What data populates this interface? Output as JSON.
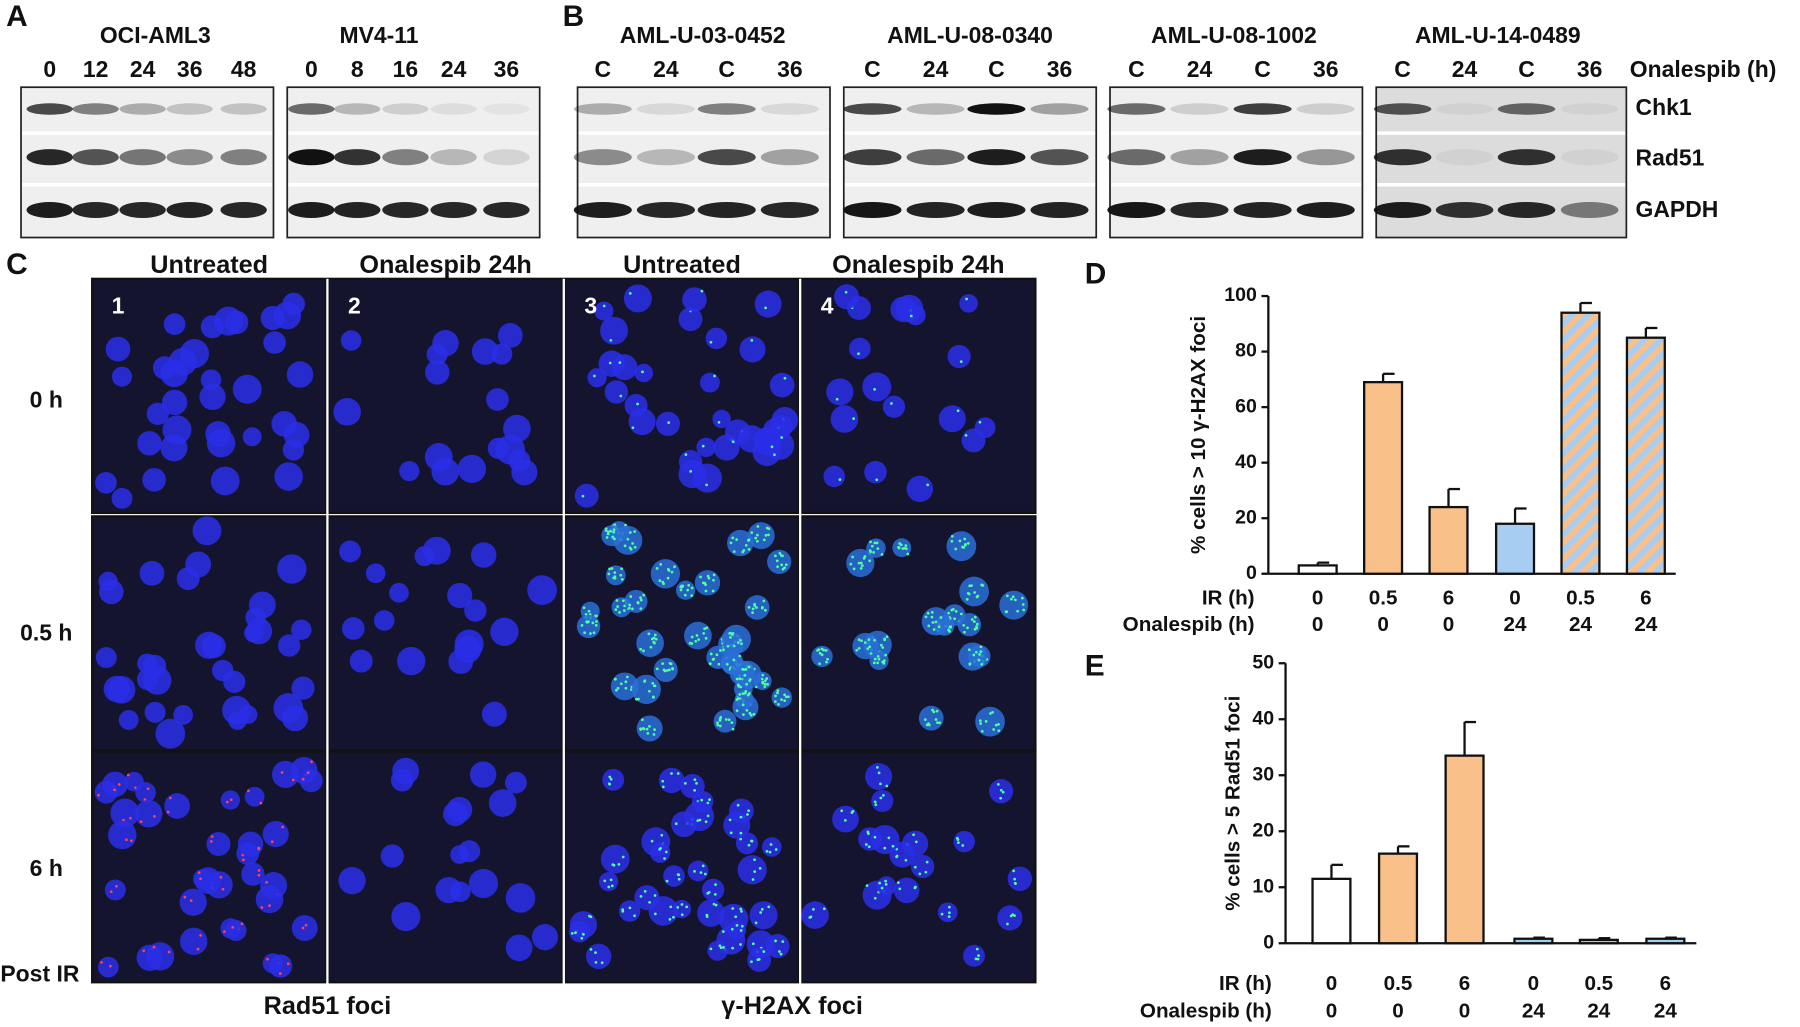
{
  "panel_labels": [
    "A",
    "B",
    "C",
    "D",
    "E"
  ],
  "blots": {
    "groups": [
      {
        "title": "OCI-AML3",
        "lanes": [
          "0",
          "12",
          "24",
          "36",
          "48"
        ]
      },
      {
        "title": "MV4-11",
        "lanes": [
          "0",
          "8",
          "16",
          "24",
          "36"
        ]
      },
      {
        "title": "AML-U-03-0452",
        "lanes": [
          "C",
          "24",
          "C",
          "36"
        ]
      },
      {
        "title": "AML-U-08-0340",
        "lanes": [
          "C",
          "24",
          "C",
          "36"
        ]
      },
      {
        "title": "AML-U-08-1002",
        "lanes": [
          "C",
          "24",
          "C",
          "36"
        ]
      },
      {
        "title": "AML-U-14-0489",
        "lanes": [
          "C",
          "24",
          "C",
          "36"
        ]
      }
    ],
    "treatment_label": "Onalespib (h)",
    "proteins": [
      "Chk1",
      "Rad51",
      "GAPDH"
    ]
  },
  "microscopy": {
    "columns": [
      "Untreated",
      "Onalespib 24h",
      "Untreated",
      "Onalespib 24h"
    ],
    "panel_numbers": [
      "1",
      "2",
      "3",
      "4"
    ],
    "rows": [
      "0 h",
      "0.5 h",
      "6 h"
    ],
    "post_label": "Post IR",
    "stains": [
      "Rad51 foci",
      "γ-H2AX foci"
    ]
  },
  "chart_data": [
    {
      "type": "bar",
      "ylabel": "% cells > 10 γ-H2AX foci",
      "category_rows": [
        {
          "name": "IR (h)",
          "labels": [
            "0",
            "0.5",
            "6",
            "0",
            "0.5",
            "6"
          ]
        },
        {
          "name": "Onalespib (h)",
          "labels": [
            "0",
            "0",
            "0",
            "24",
            "24",
            "24"
          ]
        }
      ],
      "values": [
        3,
        69,
        24,
        18,
        94,
        85
      ],
      "errors": [
        1,
        3,
        6.5,
        5.5,
        3.5,
        3.5
      ],
      "fills": [
        "#ffffff",
        "#f9c08a",
        "#f9c08a",
        "#a8cdf2",
        "#f9c08a",
        "#f9c08a"
      ],
      "hatch": [
        false,
        false,
        false,
        false,
        true,
        true
      ],
      "hatch_color": "#a8cdf2",
      "ylim": [
        0,
        100
      ],
      "yticks": [
        0,
        20,
        40,
        60,
        80,
        100
      ]
    },
    {
      "type": "bar",
      "ylabel": "% cells > 5 Rad51 foci",
      "category_rows": [
        {
          "name": "IR (h)",
          "labels": [
            "0",
            "0.5",
            "6",
            "0",
            "0.5",
            "6"
          ]
        },
        {
          "name": "Onalespib (h)",
          "labels": [
            "0",
            "0",
            "0",
            "24",
            "24",
            "24"
          ]
        }
      ],
      "values": [
        11.5,
        16,
        33.5,
        0.8,
        0.6,
        0.8
      ],
      "errors": [
        2.5,
        1.3,
        6,
        0.2,
        0.3,
        0.2
      ],
      "fills": [
        "#ffffff",
        "#f9c08a",
        "#f9c08a",
        "#a8cdf2",
        "#a8cdf2",
        "#a8cdf2"
      ],
      "hatch": [
        false,
        false,
        false,
        false,
        false,
        false
      ],
      "hatch_color": "#a8cdf2",
      "ylim": [
        0,
        50
      ],
      "yticks": [
        0,
        10,
        20,
        30,
        40,
        50
      ]
    }
  ]
}
